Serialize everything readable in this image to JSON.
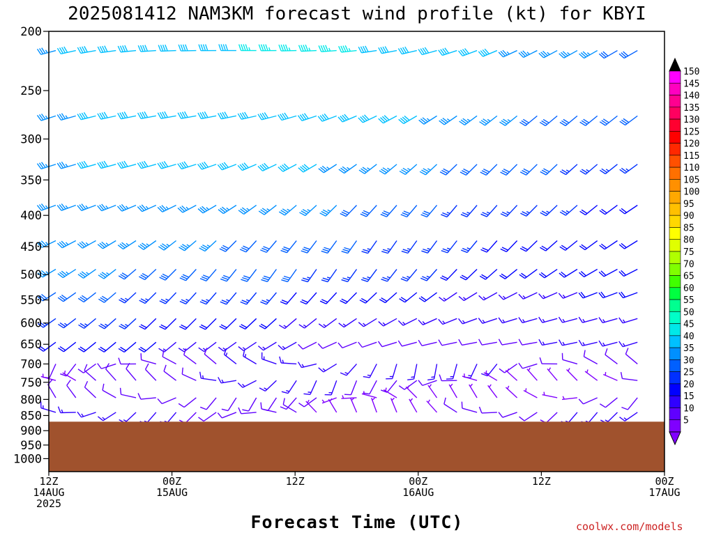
{
  "chart_data": {
    "type": "wind_barb_time_height",
    "title": "2025081412 NAM3KM forecast wind profile (kt) for KBYI",
    "xlabel": "Forecast Time (UTC)",
    "ylabel": "",
    "credit": "coolwx.com/models",
    "y_scale": "log",
    "y_inverted": true,
    "ylim": [
      200,
      1050
    ],
    "y_ticks": [
      "200",
      "250",
      "300",
      "350",
      "400",
      "450",
      "500",
      "550",
      "600",
      "650",
      "700",
      "750",
      "800",
      "850",
      "900",
      "950",
      "1000"
    ],
    "x_ticks": [
      {
        "hours": 0,
        "time": "12Z",
        "date": "14AUG",
        "year": "2025"
      },
      {
        "hours": 12,
        "time": "00Z",
        "date": "15AUG",
        "year": ""
      },
      {
        "hours": 24,
        "time": "12Z",
        "date": "",
        "year": ""
      },
      {
        "hours": 36,
        "time": "00Z",
        "date": "16AUG",
        "year": ""
      },
      {
        "hours": 48,
        "time": "12Z",
        "date": "",
        "year": ""
      },
      {
        "hours": 60,
        "time": "00Z",
        "date": "17AUG",
        "year": ""
      }
    ],
    "xlim": [
      0,
      60
    ],
    "terrain_color": "#a0522d",
    "surface_pressure_hpa": 870,
    "levels": [
      {
        "p": 215,
        "dir": 255,
        "spd": 37
      },
      {
        "p": 275,
        "dir": 245,
        "spd": 35
      },
      {
        "p": 330,
        "dir": 240,
        "spd": 33
      },
      {
        "p": 385,
        "dir": 235,
        "spd": 30
      },
      {
        "p": 440,
        "dir": 230,
        "spd": 28
      },
      {
        "p": 490,
        "dir": 230,
        "spd": 27
      },
      {
        "p": 535,
        "dir": 235,
        "spd": 23
      },
      {
        "p": 590,
        "dir": 240,
        "spd": 20
      },
      {
        "p": 645,
        "dir": 245,
        "spd": 17
      },
      {
        "p": 700,
        "dir": 250,
        "spd": 13
      },
      {
        "p": 745,
        "dir": 260,
        "spd": 10
      },
      {
        "p": 795,
        "dir": 270,
        "spd": 8
      },
      {
        "p": 840,
        "dir": 280,
        "spd": 10
      }
    ],
    "columns": 60,
    "colorbar": {
      "labels": [
        "150",
        "145",
        "140",
        "135",
        "130",
        "125",
        "120",
        "115",
        "110",
        "105",
        "100",
        "95",
        "90",
        "85",
        "80",
        "75",
        "70",
        "65",
        "60",
        "55",
        "50",
        "45",
        "40",
        "35",
        "30",
        "25",
        "20",
        "15",
        "10",
        "5"
      ],
      "colors": [
        "#ff00ff",
        "#ff00c0",
        "#ff0090",
        "#ff0060",
        "#ff0030",
        "#ff0000",
        "#ff2800",
        "#ff5000",
        "#ff7000",
        "#ff9000",
        "#ffa800",
        "#ffc000",
        "#ffd800",
        "#ffff00",
        "#e0ff00",
        "#b0ff00",
        "#80ff00",
        "#40ff00",
        "#00ff40",
        "#00ff90",
        "#00ffc8",
        "#00e8e8",
        "#00c0ff",
        "#0090ff",
        "#0060ff",
        "#0030ff",
        "#0000ff",
        "#3000ff",
        "#6000ff",
        "#8000ff"
      ]
    }
  }
}
